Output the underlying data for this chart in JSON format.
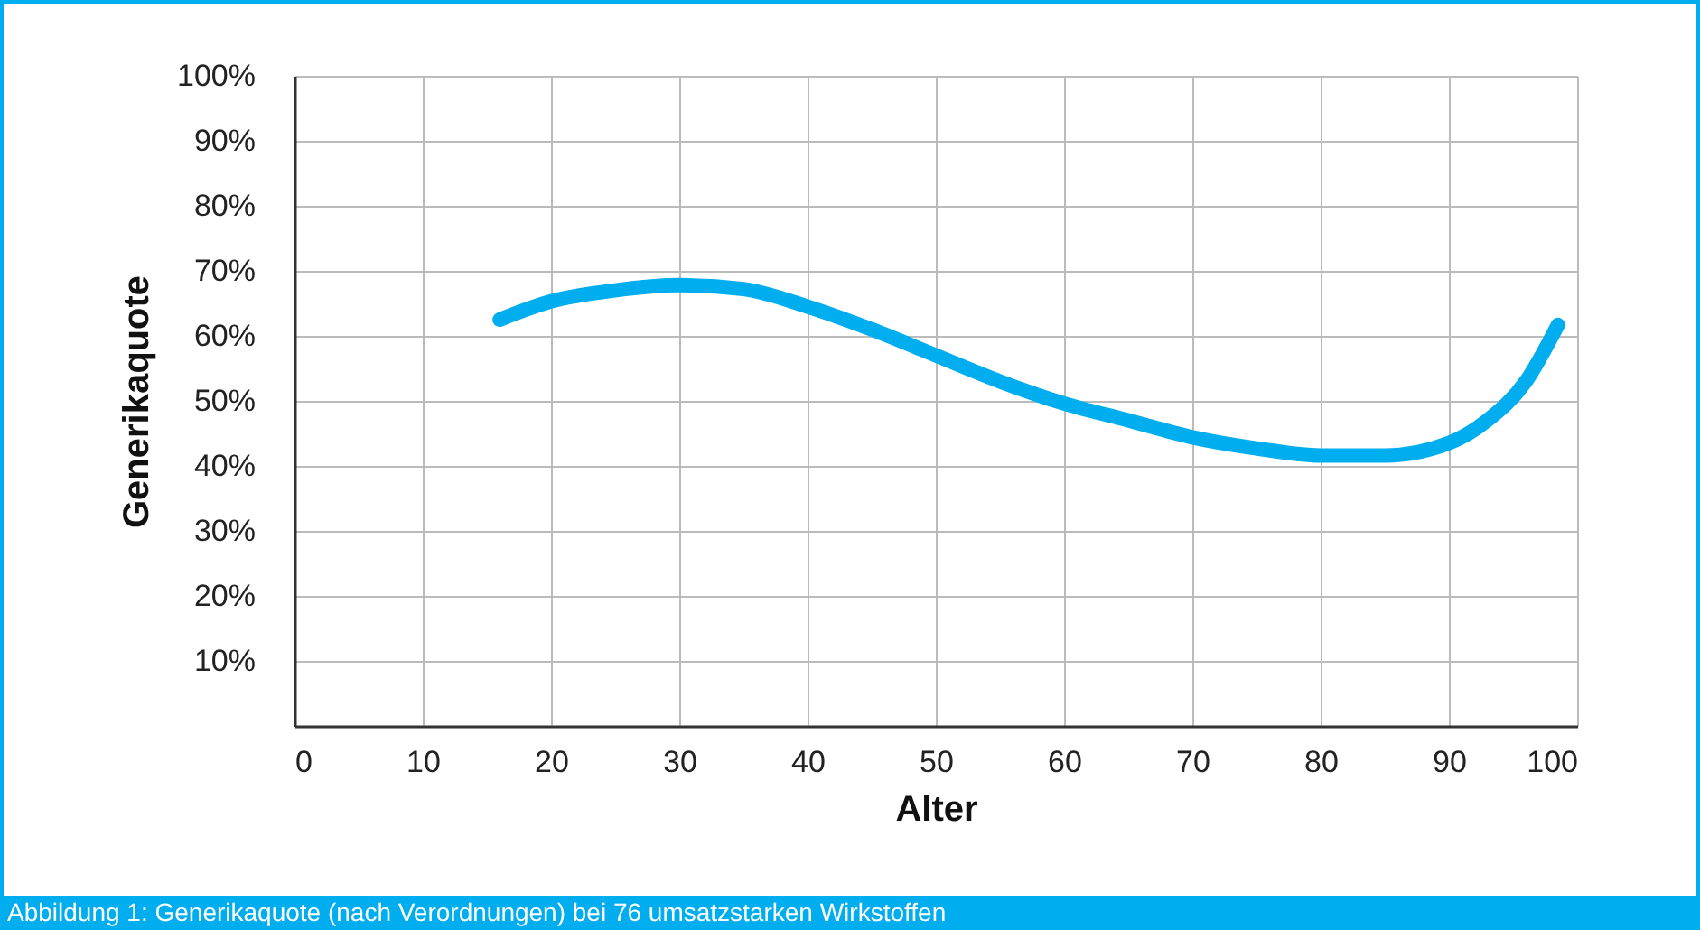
{
  "chart_data": {
    "type": "line",
    "xlabel": "Alter",
    "ylabel": "Generikaquote",
    "annotations": [
      "Abbildung 1: Generikaquote (nach Verordnungen) bei 76 umsatzstarken Wirkstoffen"
    ],
    "xlim": [
      0,
      100
    ],
    "xticks": [
      0,
      10,
      20,
      30,
      40,
      50,
      60,
      70,
      80,
      90,
      100
    ],
    "ylim": [
      0,
      100
    ],
    "yticks": [
      {
        "value": 10,
        "label": "10%"
      },
      {
        "value": 20,
        "label": "20%"
      },
      {
        "value": 30,
        "label": "30%"
      },
      {
        "value": 40,
        "label": "40%"
      },
      {
        "value": 50,
        "label": "50%"
      },
      {
        "value": 60,
        "label": "60%"
      },
      {
        "value": 70,
        "label": "70%"
      },
      {
        "value": 80,
        "label": "80%"
      },
      {
        "value": 90,
        "label": "90%"
      },
      {
        "value": 100,
        "label": "100%"
      }
    ],
    "grid": true,
    "marker": "none",
    "line_style": "solid",
    "series": [
      {
        "color": "#00aeef",
        "x": [
          16,
          20,
          25,
          30,
          35,
          40,
          45,
          50,
          55,
          60,
          65,
          70,
          75,
          80,
          85,
          90,
          93,
          96,
          98.5
        ],
        "values": [
          62.5,
          65.3,
          67,
          67.8,
          67.2,
          64.5,
          61,
          57,
          53,
          49.6,
          47,
          44.4,
          42.7,
          41.6,
          41.6,
          43.5,
          47,
          53,
          61.7
        ]
      }
    ]
  }
}
